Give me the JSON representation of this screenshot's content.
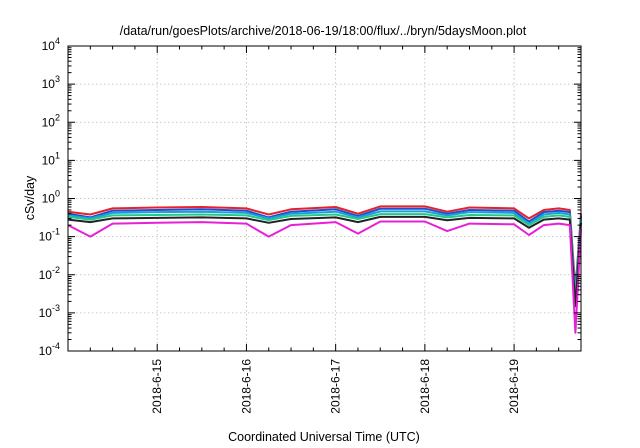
{
  "chart_data": {
    "type": "line",
    "title": "/data/run/goesPlots/archive/2018-06-19/18:00/flux/../bryn/5daysMoon.plot",
    "xlabel": "Coordinated Universal Time (UTC)",
    "ylabel": "cSv/day",
    "y_scale": "log",
    "ylim": [
      0.0001,
      10000
    ],
    "xlim": [
      "2018-06-14 00:00",
      "2018-06-19 18:00"
    ],
    "grid": true,
    "x_ticks": [
      "2018-6-15",
      "2018-6-16",
      "2018-6-17",
      "2018-6-18",
      "2018-6-19"
    ],
    "y_ticks": [
      {
        "base": "10",
        "exp": "-4"
      },
      {
        "base": "10",
        "exp": "-3"
      },
      {
        "base": "10",
        "exp": "-2"
      },
      {
        "base": "10",
        "exp": "-1"
      },
      {
        "base": "10",
        "exp": "0"
      },
      {
        "base": "10",
        "exp": "1"
      },
      {
        "base": "10",
        "exp": "2"
      },
      {
        "base": "10",
        "exp": "3"
      },
      {
        "base": "10",
        "exp": "4"
      }
    ],
    "series": [
      {
        "color": "#e8202a",
        "x": [
          "2018-06-14 00:00",
          "2018-06-14 06:00",
          "2018-06-14 12:00",
          "2018-06-15 00:00",
          "2018-06-15 12:00",
          "2018-06-16 00:00",
          "2018-06-16 06:00",
          "2018-06-16 12:00",
          "2018-06-17 00:00",
          "2018-06-17 06:00",
          "2018-06-17 12:00",
          "2018-06-18 00:00",
          "2018-06-18 06:00",
          "2018-06-18 12:00",
          "2018-06-19 00:00",
          "2018-06-19 04:00",
          "2018-06-19 08:00",
          "2018-06-19 12:00",
          "2018-06-19 15:00",
          "2018-06-19 16:30",
          "2018-06-19 18:00"
        ],
        "y": [
          0.45,
          0.38,
          0.55,
          0.58,
          0.6,
          0.55,
          0.38,
          0.52,
          0.6,
          0.4,
          0.62,
          0.62,
          0.45,
          0.58,
          0.55,
          0.3,
          0.5,
          0.55,
          0.5,
          0.004,
          0.4
        ]
      },
      {
        "color": "#1f4fd0",
        "x": [
          "2018-06-14 00:00",
          "2018-06-14 06:00",
          "2018-06-14 12:00",
          "2018-06-15 00:00",
          "2018-06-15 12:00",
          "2018-06-16 00:00",
          "2018-06-16 06:00",
          "2018-06-16 12:00",
          "2018-06-17 00:00",
          "2018-06-17 06:00",
          "2018-06-17 12:00",
          "2018-06-18 00:00",
          "2018-06-18 06:00",
          "2018-06-18 12:00",
          "2018-06-19 00:00",
          "2018-06-19 04:00",
          "2018-06-19 08:00",
          "2018-06-19 12:00",
          "2018-06-19 15:00",
          "2018-06-19 16:30",
          "2018-06-19 18:00"
        ],
        "y": [
          0.4,
          0.32,
          0.48,
          0.5,
          0.52,
          0.48,
          0.32,
          0.45,
          0.52,
          0.35,
          0.54,
          0.54,
          0.4,
          0.5,
          0.48,
          0.25,
          0.44,
          0.48,
          0.44,
          0.003,
          0.35
        ]
      },
      {
        "color": "#1aa0d8",
        "x": [
          "2018-06-14 00:00",
          "2018-06-14 06:00",
          "2018-06-14 12:00",
          "2018-06-15 00:00",
          "2018-06-15 12:00",
          "2018-06-16 00:00",
          "2018-06-16 06:00",
          "2018-06-16 12:00",
          "2018-06-17 00:00",
          "2018-06-17 06:00",
          "2018-06-17 12:00",
          "2018-06-18 00:00",
          "2018-06-18 06:00",
          "2018-06-18 12:00",
          "2018-06-19 00:00",
          "2018-06-19 04:00",
          "2018-06-19 08:00",
          "2018-06-19 12:00",
          "2018-06-19 15:00",
          "2018-06-19 16:30",
          "2018-06-19 18:00"
        ],
        "y": [
          0.36,
          0.3,
          0.42,
          0.44,
          0.45,
          0.42,
          0.3,
          0.4,
          0.45,
          0.32,
          0.46,
          0.46,
          0.36,
          0.44,
          0.42,
          0.22,
          0.38,
          0.42,
          0.38,
          0.003,
          0.3
        ]
      },
      {
        "color": "#22c98a",
        "x": [
          "2018-06-14 00:00",
          "2018-06-14 06:00",
          "2018-06-14 12:00",
          "2018-06-15 00:00",
          "2018-06-15 12:00",
          "2018-06-16 00:00",
          "2018-06-16 06:00",
          "2018-06-16 12:00",
          "2018-06-17 00:00",
          "2018-06-17 06:00",
          "2018-06-17 12:00",
          "2018-06-18 00:00",
          "2018-06-18 06:00",
          "2018-06-18 12:00",
          "2018-06-19 00:00",
          "2018-06-19 04:00",
          "2018-06-19 08:00",
          "2018-06-19 12:00",
          "2018-06-19 15:00",
          "2018-06-19 16:30",
          "2018-06-19 18:00"
        ],
        "y": [
          0.33,
          0.28,
          0.36,
          0.37,
          0.38,
          0.36,
          0.27,
          0.35,
          0.38,
          0.29,
          0.39,
          0.39,
          0.32,
          0.37,
          0.36,
          0.2,
          0.33,
          0.36,
          0.33,
          0.002,
          0.27
        ]
      },
      {
        "color": "#222222",
        "x": [
          "2018-06-14 00:00",
          "2018-06-14 06:00",
          "2018-06-14 12:00",
          "2018-06-15 00:00",
          "2018-06-15 12:00",
          "2018-06-16 00:00",
          "2018-06-16 06:00",
          "2018-06-16 12:00",
          "2018-06-17 00:00",
          "2018-06-17 06:00",
          "2018-06-17 12:00",
          "2018-06-18 00:00",
          "2018-06-18 06:00",
          "2018-06-18 12:00",
          "2018-06-19 00:00",
          "2018-06-19 04:00",
          "2018-06-19 08:00",
          "2018-06-19 12:00",
          "2018-06-19 15:00",
          "2018-06-19 16:30",
          "2018-06-19 18:00"
        ],
        "y": [
          0.28,
          0.24,
          0.3,
          0.31,
          0.32,
          0.3,
          0.23,
          0.29,
          0.32,
          0.24,
          0.33,
          0.33,
          0.27,
          0.31,
          0.3,
          0.17,
          0.28,
          0.3,
          0.28,
          0.0015,
          0.23
        ]
      },
      {
        "color": "#e81fd8",
        "x": [
          "2018-06-14 00:00",
          "2018-06-14 06:00",
          "2018-06-14 12:00",
          "2018-06-15 00:00",
          "2018-06-15 12:00",
          "2018-06-16 00:00",
          "2018-06-16 06:00",
          "2018-06-16 12:00",
          "2018-06-17 00:00",
          "2018-06-17 06:00",
          "2018-06-17 12:00",
          "2018-06-18 00:00",
          "2018-06-18 06:00",
          "2018-06-18 12:00",
          "2018-06-19 00:00",
          "2018-06-19 04:00",
          "2018-06-19 08:00",
          "2018-06-19 12:00",
          "2018-06-19 15:00",
          "2018-06-19 16:30",
          "2018-06-19 18:00"
        ],
        "y": [
          0.2,
          0.1,
          0.22,
          0.23,
          0.24,
          0.22,
          0.1,
          0.2,
          0.24,
          0.12,
          0.25,
          0.25,
          0.14,
          0.22,
          0.21,
          0.11,
          0.2,
          0.22,
          0.2,
          0.0003,
          0.16
        ]
      }
    ]
  }
}
